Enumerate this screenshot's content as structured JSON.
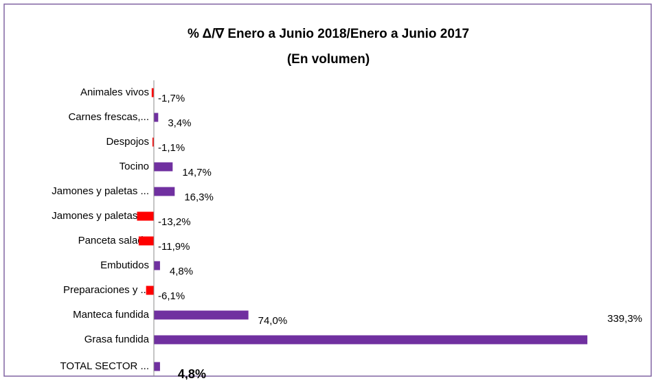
{
  "chart_data": {
    "type": "barh",
    "title": "% Δ/∇ Enero a Junio 2018/Enero a Junio 2017",
    "subtitle": "(En volumen)",
    "categories": [
      "Animales vivos",
      "Carnes frescas,...",
      "Despojos",
      "Tocino",
      "Jamones y paletas ...",
      "Jamones y paletas ...",
      "Panceta salada",
      "Embutidos",
      "Preparaciones y ...",
      "Manteca fundida",
      "Grasa fundida",
      "TOTAL SECTOR ..."
    ],
    "values": [
      -1.7,
      3.4,
      -1.1,
      14.7,
      16.3,
      -13.2,
      -11.9,
      4.8,
      -6.1,
      74.0,
      339.3,
      4.8
    ],
    "value_labels": [
      "-1,7%",
      "3,4%",
      "-1,1%",
      "14,7%",
      "16,3%",
      "-13,2%",
      "-11,9%",
      "4,8%",
      "-6,1%",
      "74,0%",
      "339,3%",
      "4,8%"
    ],
    "color": "#7030a0",
    "negative_color": "#ff0000",
    "xlim": [
      -20,
      350
    ]
  }
}
